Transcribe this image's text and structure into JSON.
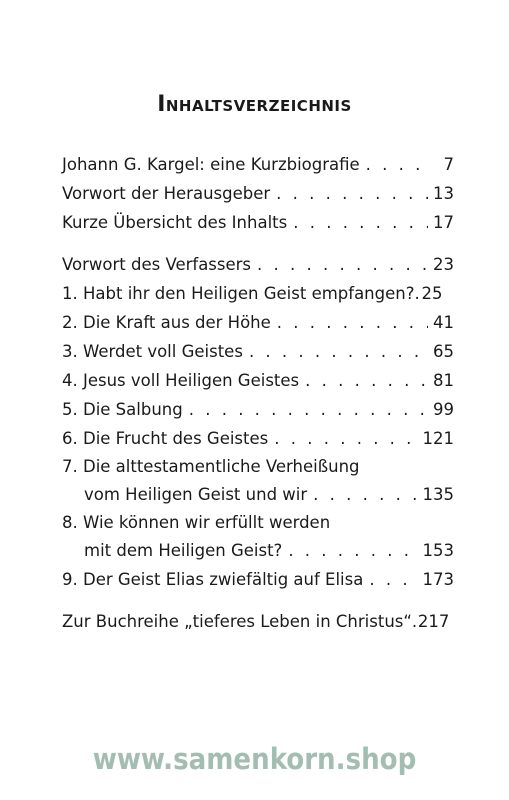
{
  "title": "Inhaltsverzeichnis",
  "entries": [
    {
      "text": "Johann G. Kargel: eine Kurzbiografie",
      "page": "7"
    },
    {
      "text": "Vorwort der Herausgeber",
      "page": "13"
    },
    {
      "text": "Kurze Übersicht des Inhalts",
      "page": "17"
    },
    {
      "text": "Vorwort des Verfassers",
      "page": "23"
    },
    {
      "text": "1. Habt ihr den Heiligen Geist empfangen?",
      "page": "25"
    },
    {
      "text": "2. Die Kraft aus der Höhe",
      "page": "41"
    },
    {
      "text": "3. Werdet voll Geistes",
      "page": "65"
    },
    {
      "text": "4. Jesus voll Heiligen Geistes",
      "page": "81"
    },
    {
      "text": "5. Die Salbung",
      "page": "99"
    },
    {
      "text": "6. Die Frucht des Geistes",
      "page": "121"
    },
    {
      "line1": "7. Die alttestamentliche Verheißung",
      "line2": "vom Heiligen Geist und wir",
      "page": "135"
    },
    {
      "line1": "8. Wie können wir erfüllt werden",
      "line2": "mit dem Heiligen Geist?",
      "page": "153"
    },
    {
      "text": "9. Der Geist Elias zwiefältig auf Elisa",
      "page": "173"
    },
    {
      "text": "Zur Buchreihe „tieferes Leben in Christus“",
      "page": "217"
    }
  ],
  "footer": "www.samenkorn.shop"
}
